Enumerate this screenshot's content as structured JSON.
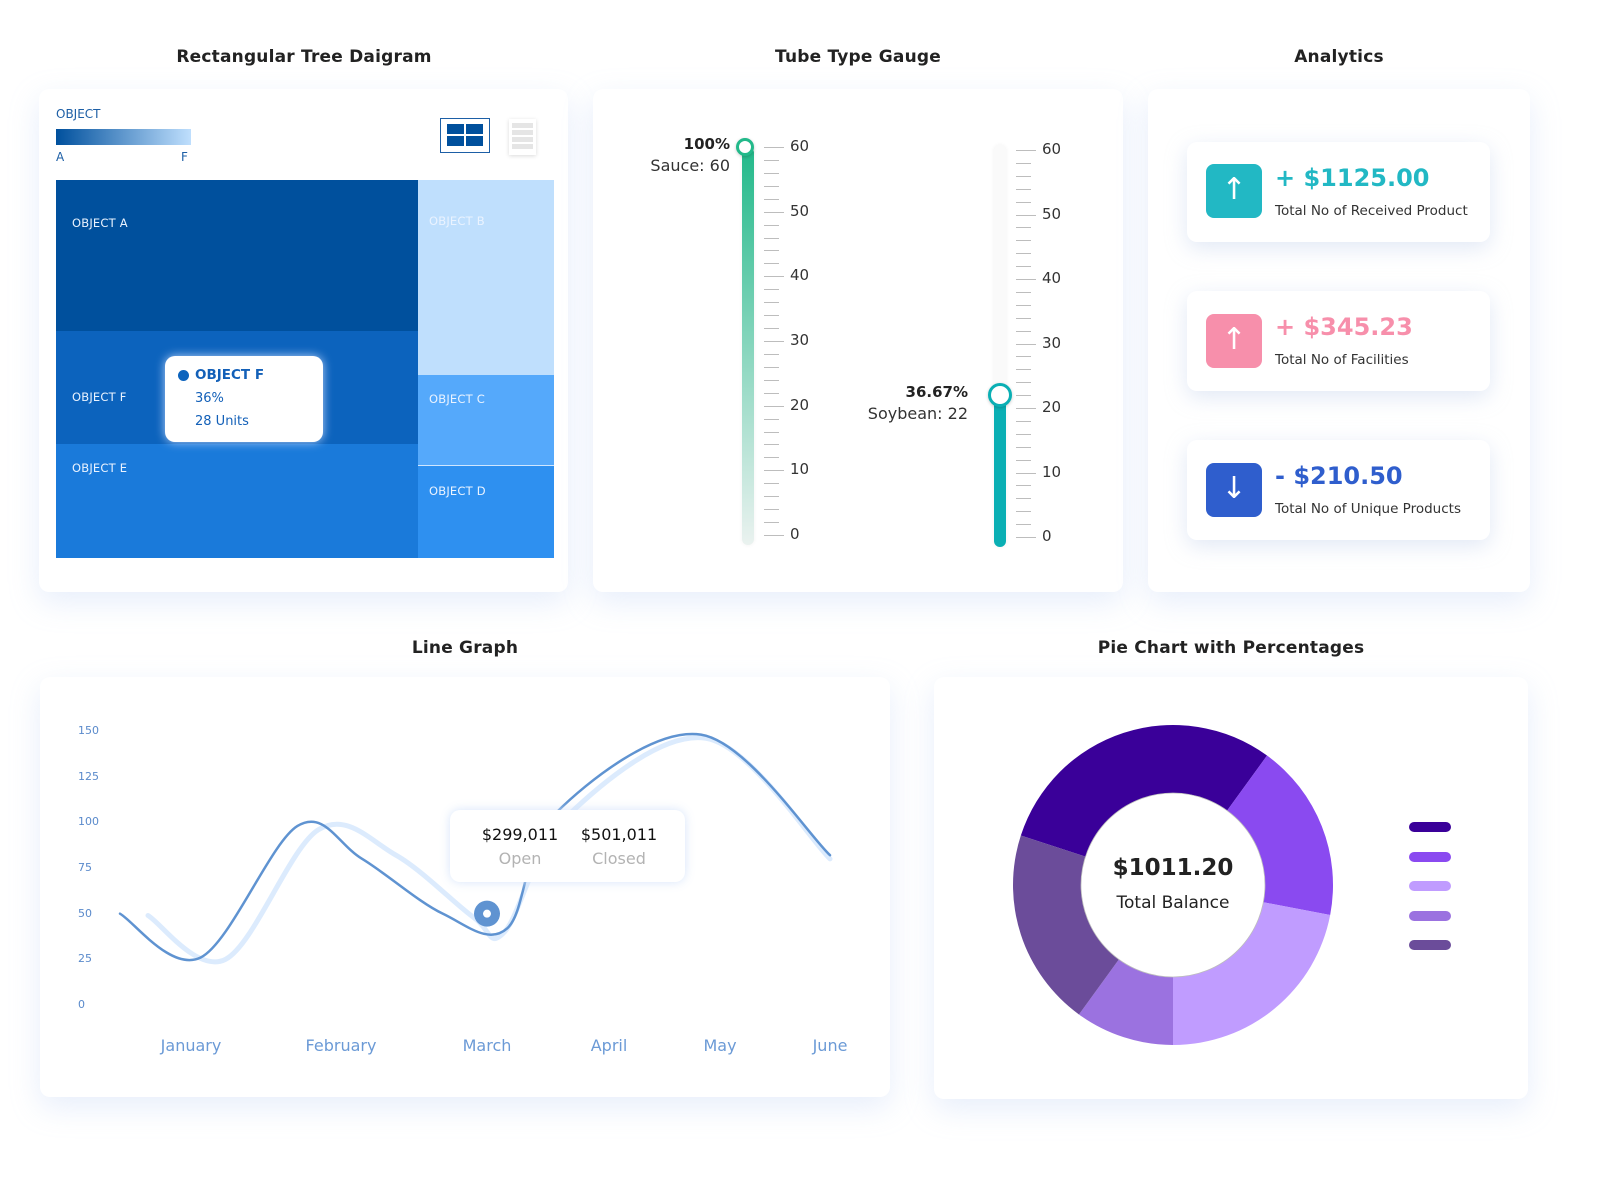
{
  "treemap": {
    "title": "Rectangular Tree Daigram",
    "legend": {
      "title": "OBJECT",
      "start_label": "A",
      "end_label": "F",
      "start_color": "#00509d",
      "end_color": "#bfdffd"
    },
    "view_buttons": [
      {
        "name": "grid-view",
        "active": true
      },
      {
        "name": "list-view",
        "active": false
      }
    ],
    "cells": [
      {
        "label": "OBJECT A",
        "color": "#00509d"
      },
      {
        "label": "OBJECT F",
        "color": "#0c63bd"
      },
      {
        "label": "OBJECT E",
        "color": "#1a7ada"
      },
      {
        "label": "OBJECT B",
        "color": "#bfdffd"
      },
      {
        "label": "OBJECT C",
        "color": "#55a9fb"
      },
      {
        "label": "OBJECT D",
        "color": "#2e90f0"
      }
    ],
    "tooltip": {
      "title": "OBJECT F",
      "percent": "36%",
      "units": "28 Units",
      "color": "#0c63bd"
    }
  },
  "gauge": {
    "title": "Tube Type Gauge",
    "scale": {
      "min": 0,
      "max": 60,
      "labels": [
        "60",
        "50",
        "40",
        "30",
        "20",
        "10",
        "0"
      ]
    },
    "tubes": [
      {
        "name": "Sauce",
        "percent_label": "100%",
        "value_label": "Sauce: 60",
        "value": 60,
        "color": "#22b98a"
      },
      {
        "name": "Soybean",
        "percent_label": "36.67%",
        "value_label": "Soybean: 22",
        "value": 22,
        "color": "#0aafb4"
      }
    ]
  },
  "analytics": {
    "title": "Analytics",
    "items": [
      {
        "icon": "arrow-up-icon",
        "glyph": "↑",
        "value": "+ $1125.00",
        "label": "Total No of Received Product",
        "color": "#22b8c4"
      },
      {
        "icon": "arrow-up-icon",
        "glyph": "↑",
        "value": "+ $345.23",
        "label": "Total No of Facilities",
        "color": "#f78fab"
      },
      {
        "icon": "arrow-down-icon",
        "glyph": "↓",
        "value": "- $210.50",
        "label": "Total No of Unique Products",
        "color": "#2f5ecd"
      }
    ]
  },
  "chart_data": [
    {
      "type": "line",
      "title": "Line Graph",
      "categories": [
        "January",
        "February",
        "March",
        "April",
        "May",
        "June"
      ],
      "yticks": [
        "150",
        "125",
        "100",
        "75",
        "50",
        "25",
        "0"
      ],
      "ylim": [
        0,
        150
      ],
      "series": [
        {
          "name": "Open",
          "color": "#5f93d1",
          "x": [
            0.0,
            0.5,
            1.1,
            1.5,
            2.0,
            2.4,
            2.7,
            3.6,
            4.4
          ],
          "values": [
            50,
            26,
            98,
            80,
            50,
            42,
            105,
            148,
            82
          ]
        },
        {
          "name": "Closed",
          "color": "#dcebfd",
          "x": [
            0.2,
            0.7,
            1.3,
            1.8,
            2.3,
            2.5,
            2.9,
            3.8,
            4.6
          ],
          "values": [
            49,
            25,
            96,
            82,
            48,
            40,
            103,
            146,
            80
          ]
        }
      ],
      "tooltip": {
        "open_value": "$299,011",
        "open_label": "Open",
        "closed_value": "$501,011",
        "closed_label": "Closed",
        "category": "March"
      }
    },
    {
      "type": "pie",
      "title": "Pie Chart with Percentages",
      "center_value": "$1011.20",
      "center_label": "Total Balance",
      "slices": [
        {
          "value": 30,
          "color": "#3a0099"
        },
        {
          "value": 18,
          "color": "#8a4af0"
        },
        {
          "value": 22,
          "color": "#c09cff"
        },
        {
          "value": 10,
          "color": "#9b72e0"
        },
        {
          "value": 20,
          "color": "#6b4c9a"
        }
      ]
    }
  ]
}
